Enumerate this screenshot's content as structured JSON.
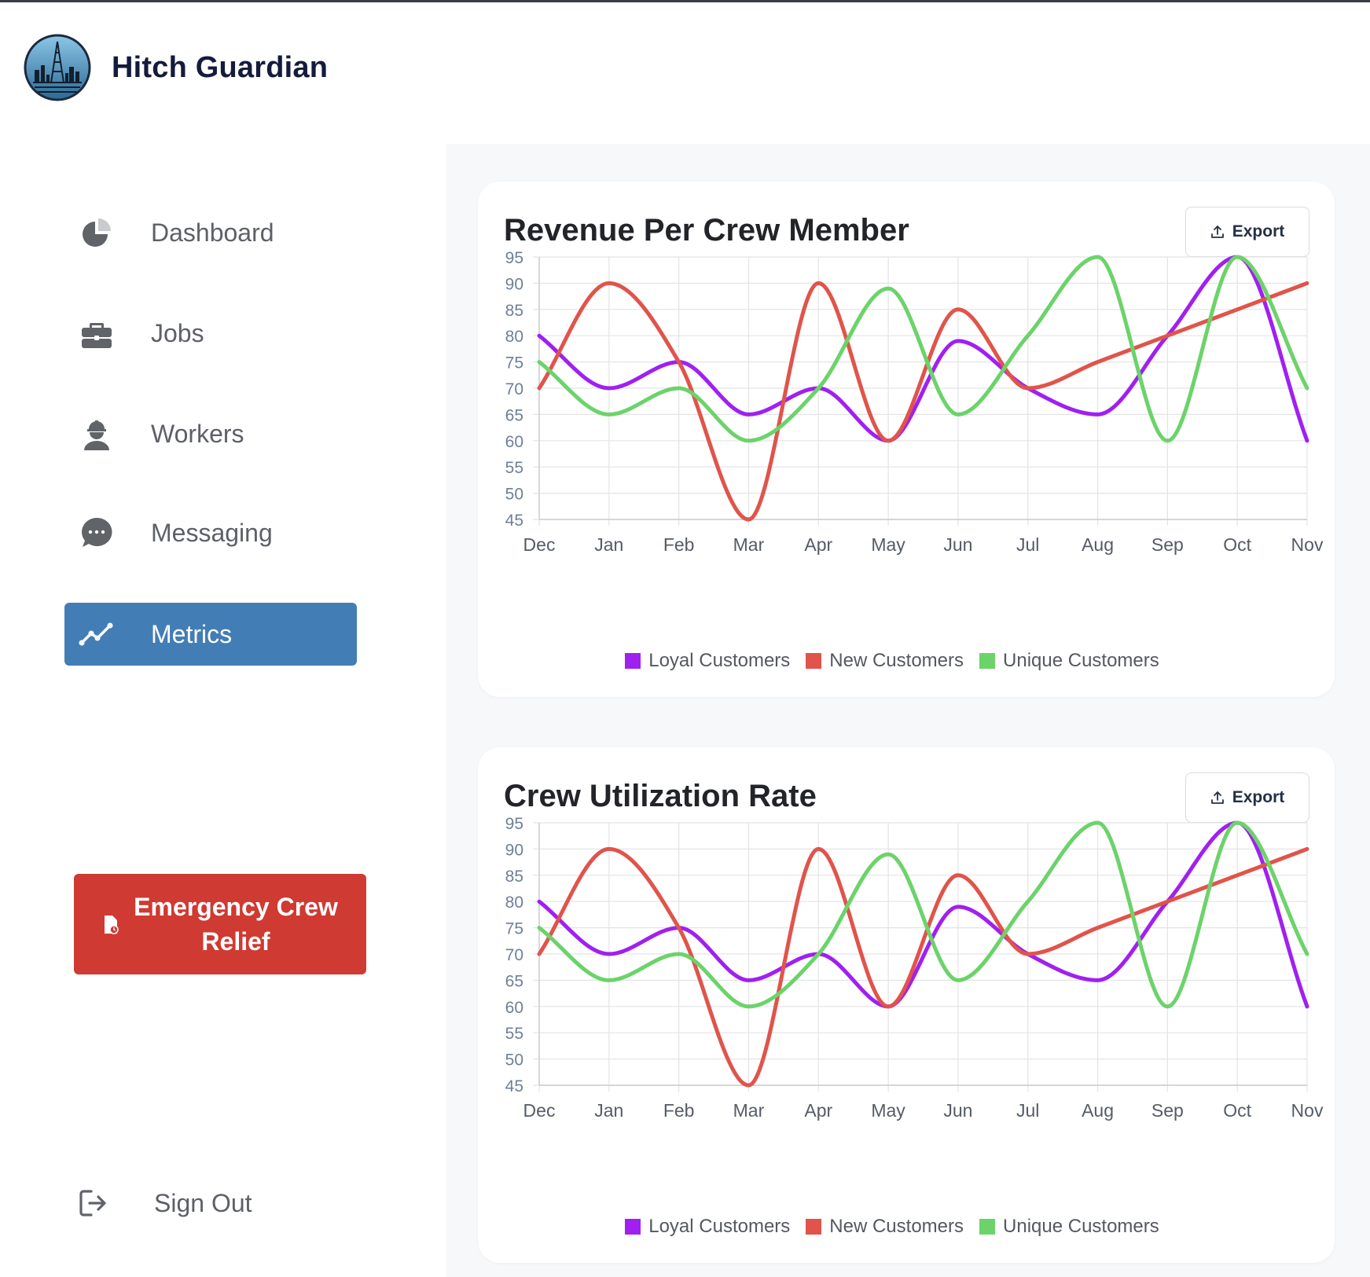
{
  "app": {
    "name": "Hitch Guardian",
    "logo_icon": "oil-rig-logo"
  },
  "sidebar": {
    "items": [
      {
        "label": "Dashboard",
        "icon": "pie-chart-icon",
        "active": false
      },
      {
        "label": "Jobs",
        "icon": "briefcase-icon",
        "active": false
      },
      {
        "label": "Workers",
        "icon": "worker-icon",
        "active": false
      },
      {
        "label": "Messaging",
        "icon": "chat-bubble-icon",
        "active": false
      },
      {
        "label": "Metrics",
        "icon": "line-chart-icon",
        "active": true
      }
    ],
    "emergency_label": "Emergency Crew Relief",
    "emergency_icon": "alert-document-icon",
    "signout_label": "Sign Out",
    "signout_icon": "sign-out-icon"
  },
  "colors": {
    "accent": "#437db6",
    "danger": "#cf3a32",
    "loyal": "#a020f0",
    "new": "#e0544b",
    "unique": "#6cd36a"
  },
  "cards": [
    {
      "title": "Revenue Per Crew Member",
      "export_label": "Export"
    },
    {
      "title": "Crew Utilization Rate",
      "export_label": "Export"
    }
  ],
  "chart_data": [
    {
      "type": "line",
      "title": "Revenue Per Crew Member",
      "categories": [
        "Dec",
        "Jan",
        "Feb",
        "Mar",
        "Apr",
        "May",
        "Jun",
        "Jul",
        "Aug",
        "Sep",
        "Oct",
        "Nov"
      ],
      "ylim": [
        45,
        95
      ],
      "yticks": [
        95,
        90,
        85,
        80,
        75,
        70,
        65,
        60,
        55,
        50,
        45
      ],
      "grid": true,
      "legend": "bottom",
      "series": [
        {
          "name": "Loyal Customers",
          "color": "#a020f0",
          "values": [
            80,
            70,
            75,
            65,
            70,
            60,
            79,
            70,
            65,
            80,
            95,
            60
          ]
        },
        {
          "name": "New Customers",
          "color": "#e0544b",
          "values": [
            70,
            90,
            75,
            45,
            90,
            60,
            85,
            70,
            75,
            80,
            85,
            90
          ]
        },
        {
          "name": "Unique Customers",
          "color": "#6cd36a",
          "values": [
            75,
            65,
            70,
            60,
            70,
            89,
            65,
            80,
            95,
            60,
            95,
            70
          ]
        }
      ]
    },
    {
      "type": "line",
      "title": "Crew Utilization Rate",
      "categories": [
        "Dec",
        "Jan",
        "Feb",
        "Mar",
        "Apr",
        "May",
        "Jun",
        "Jul",
        "Aug",
        "Sep",
        "Oct",
        "Nov"
      ],
      "ylim": [
        45,
        95
      ],
      "yticks": [
        95,
        90,
        85,
        80,
        75,
        70,
        65,
        60,
        55,
        50,
        45
      ],
      "grid": true,
      "legend": "bottom",
      "series": [
        {
          "name": "Loyal Customers",
          "color": "#a020f0",
          "values": [
            80,
            70,
            75,
            65,
            70,
            60,
            79,
            70,
            65,
            80,
            95,
            60
          ]
        },
        {
          "name": "New Customers",
          "color": "#e0544b",
          "values": [
            70,
            90,
            75,
            45,
            90,
            60,
            85,
            70,
            75,
            80,
            85,
            90
          ]
        },
        {
          "name": "Unique Customers",
          "color": "#6cd36a",
          "values": [
            75,
            65,
            70,
            60,
            70,
            89,
            65,
            80,
            95,
            60,
            95,
            70
          ]
        }
      ]
    }
  ]
}
